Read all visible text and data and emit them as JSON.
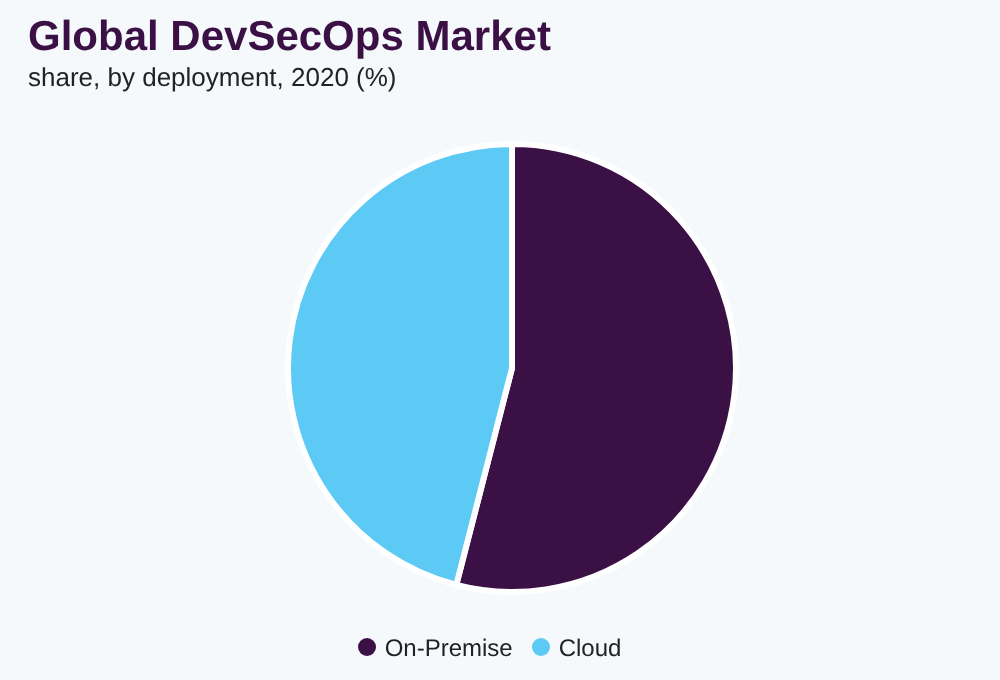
{
  "chart_data": {
    "type": "pie",
    "title": "Global DevSecOps Market",
    "subtitle": "share, by deployment, 2020 (%)",
    "categories": [
      "On-Premise",
      "Cloud"
    ],
    "values": [
      54,
      46
    ],
    "colors": [
      "#3a1045",
      "#5ccaf5"
    ],
    "legend": "bottom"
  }
}
